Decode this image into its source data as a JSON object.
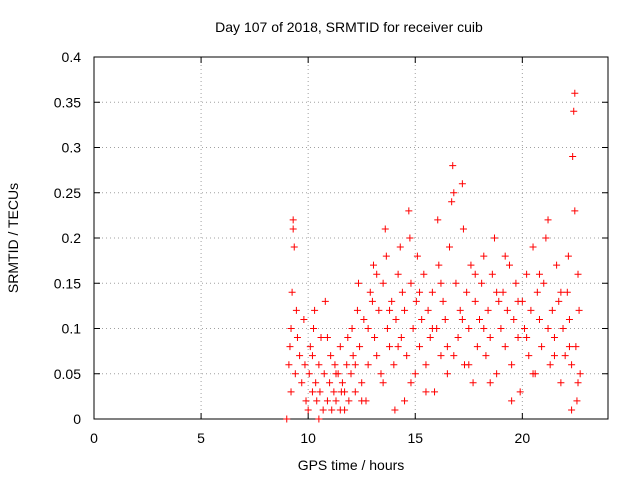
{
  "chart_data": {
    "type": "scatter",
    "title": "Day 107 of 2018, SRMTID for receiver cuib",
    "xlabel": "GPS time / hours",
    "ylabel": "SRMTID / TECUs",
    "xlim": [
      0,
      24
    ],
    "ylim": [
      0,
      0.4
    ],
    "x_ticks": [
      0,
      5,
      10,
      15,
      20
    ],
    "x_tick_labels": [
      "0",
      "5",
      "10",
      "15",
      "20"
    ],
    "y_ticks": [
      0,
      0.05,
      0.1,
      0.15,
      0.2,
      0.25,
      0.3,
      0.35,
      0.4
    ],
    "y_tick_labels": [
      "0",
      "0.05",
      "0.1",
      "0.15",
      "0.2",
      "0.25",
      "0.3",
      "0.35",
      "0.4"
    ],
    "grid": true,
    "marker": "+",
    "color": "#ff0000",
    "series": [
      {
        "name": "SRMTID",
        "points": [
          [
            9.0,
            0.0
          ],
          [
            9.1,
            0.06
          ],
          [
            9.15,
            0.08
          ],
          [
            9.2,
            0.1
          ],
          [
            9.25,
            0.14
          ],
          [
            9.3,
            0.22
          ],
          [
            9.3,
            0.21
          ],
          [
            9.35,
            0.19
          ],
          [
            9.2,
            0.03
          ],
          [
            9.4,
            0.05
          ],
          [
            9.45,
            0.12
          ],
          [
            9.5,
            0.09
          ],
          [
            9.6,
            0.07
          ],
          [
            9.7,
            0.04
          ],
          [
            9.8,
            0.11
          ],
          [
            9.85,
            0.06
          ],
          [
            9.9,
            0.02
          ],
          [
            10.0,
            0.01
          ],
          [
            10.05,
            0.05
          ],
          [
            10.1,
            0.08
          ],
          [
            10.2,
            0.03
          ],
          [
            10.25,
            0.1
          ],
          [
            10.3,
            0.12
          ],
          [
            10.35,
            0.04
          ],
          [
            10.4,
            0.02
          ],
          [
            10.5,
            0.06
          ],
          [
            10.55,
            0.03
          ],
          [
            10.6,
            0.09
          ],
          [
            10.7,
            0.01
          ],
          [
            10.75,
            0.05
          ],
          [
            10.8,
            0.13
          ],
          [
            10.9,
            0.02
          ],
          [
            11.0,
            0.04
          ],
          [
            11.05,
            0.07
          ],
          [
            11.1,
            0.01
          ],
          [
            11.2,
            0.03
          ],
          [
            11.25,
            0.06
          ],
          [
            11.3,
            0.02
          ],
          [
            11.4,
            0.05
          ],
          [
            11.5,
            0.08
          ],
          [
            11.55,
            0.03
          ],
          [
            11.6,
            0.04
          ],
          [
            11.7,
            0.01
          ],
          [
            11.8,
            0.06
          ],
          [
            11.85,
            0.09
          ],
          [
            11.9,
            0.02
          ],
          [
            12.0,
            0.05
          ],
          [
            12.05,
            0.1
          ],
          [
            12.1,
            0.07
          ],
          [
            12.2,
            0.03
          ],
          [
            12.3,
            0.12
          ],
          [
            12.35,
            0.15
          ],
          [
            12.4,
            0.08
          ],
          [
            12.5,
            0.04
          ],
          [
            12.6,
            0.11
          ],
          [
            12.7,
            0.02
          ],
          [
            12.8,
            0.06
          ],
          [
            12.9,
            0.14
          ],
          [
            13.0,
            0.13
          ],
          [
            13.05,
            0.17
          ],
          [
            13.1,
            0.09
          ],
          [
            13.2,
            0.07
          ],
          [
            13.3,
            0.12
          ],
          [
            13.4,
            0.05
          ],
          [
            13.5,
            0.15
          ],
          [
            13.6,
            0.21
          ],
          [
            13.65,
            0.18
          ],
          [
            13.7,
            0.1
          ],
          [
            13.8,
            0.08
          ],
          [
            13.9,
            0.13
          ],
          [
            14.0,
            0.06
          ],
          [
            14.05,
            0.01
          ],
          [
            14.1,
            0.11
          ],
          [
            14.2,
            0.16
          ],
          [
            14.3,
            0.19
          ],
          [
            14.35,
            0.09
          ],
          [
            14.4,
            0.14
          ],
          [
            14.5,
            0.12
          ],
          [
            14.6,
            0.07
          ],
          [
            14.7,
            0.23
          ],
          [
            14.75,
            0.2
          ],
          [
            14.8,
            0.15
          ],
          [
            14.9,
            0.1
          ],
          [
            15.0,
            0.05
          ],
          [
            15.05,
            0.13
          ],
          [
            15.1,
            0.18
          ],
          [
            15.2,
            0.08
          ],
          [
            15.3,
            0.11
          ],
          [
            15.4,
            0.16
          ],
          [
            15.5,
            0.06
          ],
          [
            15.6,
            0.12
          ],
          [
            15.7,
            0.09
          ],
          [
            15.8,
            0.14
          ],
          [
            15.9,
            0.03
          ],
          [
            16.0,
            0.1
          ],
          [
            16.05,
            0.22
          ],
          [
            16.1,
            0.17
          ],
          [
            16.2,
            0.07
          ],
          [
            16.3,
            0.13
          ],
          [
            16.4,
            0.11
          ],
          [
            16.5,
            0.05
          ],
          [
            16.6,
            0.19
          ],
          [
            16.7,
            0.24
          ],
          [
            16.75,
            0.28
          ],
          [
            16.8,
            0.25
          ],
          [
            16.9,
            0.15
          ],
          [
            17.0,
            0.09
          ],
          [
            17.1,
            0.12
          ],
          [
            17.2,
            0.26
          ],
          [
            17.25,
            0.21
          ],
          [
            17.3,
            0.06
          ],
          [
            17.4,
            0.14
          ],
          [
            17.5,
            0.1
          ],
          [
            17.6,
            0.17
          ],
          [
            17.7,
            0.04
          ],
          [
            17.8,
            0.13
          ],
          [
            17.9,
            0.08
          ],
          [
            18.0,
            0.11
          ],
          [
            18.1,
            0.15
          ],
          [
            18.2,
            0.18
          ],
          [
            18.3,
            0.07
          ],
          [
            18.4,
            0.12
          ],
          [
            18.5,
            0.09
          ],
          [
            18.6,
            0.16
          ],
          [
            18.7,
            0.2
          ],
          [
            18.8,
            0.05
          ],
          [
            18.9,
            0.13
          ],
          [
            19.0,
            0.1
          ],
          [
            19.1,
            0.14
          ],
          [
            19.2,
            0.08
          ],
          [
            19.3,
            0.12
          ],
          [
            19.4,
            0.17
          ],
          [
            19.5,
            0.06
          ],
          [
            19.6,
            0.11
          ],
          [
            19.7,
            0.15
          ],
          [
            19.8,
            0.09
          ],
          [
            19.9,
            0.03
          ],
          [
            20.0,
            0.13
          ],
          [
            20.1,
            0.1
          ],
          [
            20.2,
            0.16
          ],
          [
            20.3,
            0.07
          ],
          [
            20.4,
            0.12
          ],
          [
            20.5,
            0.19
          ],
          [
            20.6,
            0.05
          ],
          [
            20.7,
            0.14
          ],
          [
            20.8,
            0.11
          ],
          [
            20.9,
            0.08
          ],
          [
            21.0,
            0.15
          ],
          [
            21.1,
            0.2
          ],
          [
            21.2,
            0.22
          ],
          [
            21.3,
            0.06
          ],
          [
            21.4,
            0.12
          ],
          [
            21.5,
            0.09
          ],
          [
            21.6,
            0.17
          ],
          [
            21.7,
            0.13
          ],
          [
            21.8,
            0.04
          ],
          [
            21.9,
            0.1
          ],
          [
            22.0,
            0.07
          ],
          [
            22.1,
            0.14
          ],
          [
            22.15,
            0.18
          ],
          [
            22.2,
            0.11
          ],
          [
            22.3,
            0.06
          ],
          [
            22.35,
            0.29
          ],
          [
            22.4,
            0.34
          ],
          [
            22.45,
            0.36
          ],
          [
            22.45,
            0.23
          ],
          [
            22.5,
            0.08
          ],
          [
            22.55,
            0.02
          ],
          [
            22.6,
            0.16
          ],
          [
            22.65,
            0.12
          ],
          [
            22.7,
            0.05
          ],
          [
            22.3,
            0.01
          ],
          [
            21.5,
            0.07
          ],
          [
            20.5,
            0.05
          ],
          [
            19.5,
            0.02
          ],
          [
            18.5,
            0.04
          ],
          [
            17.5,
            0.06
          ],
          [
            16.5,
            0.08
          ],
          [
            15.5,
            0.03
          ],
          [
            14.5,
            0.02
          ],
          [
            13.5,
            0.04
          ],
          [
            12.5,
            0.02
          ],
          [
            11.5,
            0.01
          ],
          [
            10.5,
            0.0
          ],
          [
            10.2,
            0.07
          ],
          [
            10.9,
            0.09
          ],
          [
            11.3,
            0.05
          ],
          [
            11.7,
            0.03
          ],
          [
            12.2,
            0.06
          ],
          [
            12.8,
            0.1
          ],
          [
            13.2,
            0.16
          ],
          [
            13.8,
            0.12
          ],
          [
            14.2,
            0.08
          ],
          [
            14.8,
            0.04
          ],
          [
            15.2,
            0.14
          ],
          [
            15.8,
            0.1
          ],
          [
            16.2,
            0.15
          ],
          [
            16.8,
            0.07
          ],
          [
            17.2,
            0.11
          ],
          [
            17.8,
            0.16
          ],
          [
            18.2,
            0.1
          ],
          [
            18.8,
            0.14
          ],
          [
            19.2,
            0.18
          ],
          [
            19.8,
            0.13
          ],
          [
            20.2,
            0.09
          ],
          [
            20.8,
            0.16
          ],
          [
            21.2,
            0.1
          ],
          [
            21.8,
            0.14
          ],
          [
            22.2,
            0.08
          ],
          [
            22.6,
            0.04
          ]
        ]
      }
    ]
  }
}
